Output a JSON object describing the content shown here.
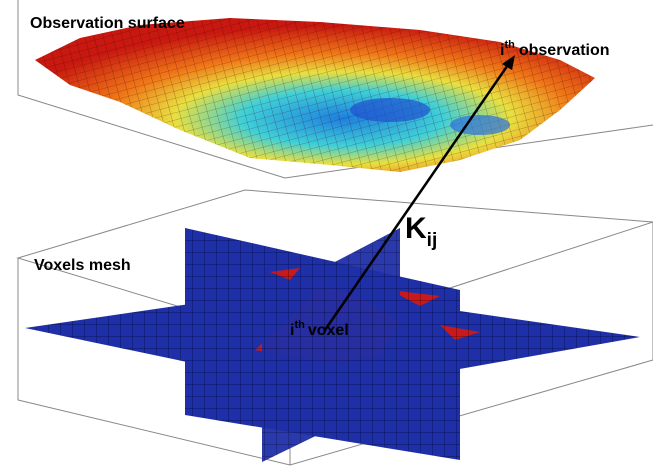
{
  "surface": {
    "title": "Observation surface"
  },
  "observation": {
    "base": "i",
    "sup": "th",
    "text": "observation"
  },
  "kernel": {
    "base": "K",
    "sub": "ij"
  },
  "mesh": {
    "title": "Voxels mesh"
  },
  "voxel": {
    "base": "i",
    "sup": "th",
    "text": "voxel"
  }
}
